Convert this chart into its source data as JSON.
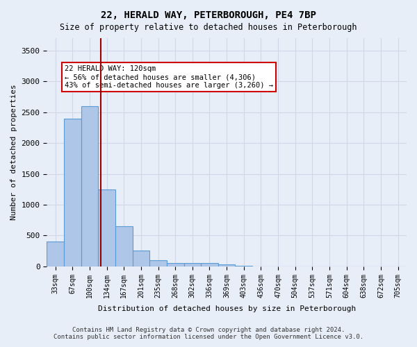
{
  "title": "22, HERALD WAY, PETERBOROUGH, PE4 7BP",
  "subtitle": "Size of property relative to detached houses in Peterborough",
  "xlabel": "Distribution of detached houses by size in Peterborough",
  "ylabel": "Number of detached properties",
  "footer_line1": "Contains HM Land Registry data © Crown copyright and database right 2024.",
  "footer_line2": "Contains public sector information licensed under the Open Government Licence v3.0.",
  "categories": [
    "33sqm",
    "67sqm",
    "100sqm",
    "134sqm",
    "167sqm",
    "201sqm",
    "235sqm",
    "268sqm",
    "302sqm",
    "336sqm",
    "369sqm",
    "403sqm",
    "436sqm",
    "470sqm",
    "504sqm",
    "537sqm",
    "571sqm",
    "604sqm",
    "638sqm",
    "672sqm",
    "705sqm"
  ],
  "values": [
    400,
    2400,
    2600,
    1250,
    650,
    260,
    100,
    60,
    60,
    50,
    30,
    5,
    0,
    0,
    0,
    0,
    0,
    0,
    0,
    0,
    0
  ],
  "bar_color": "#aec6e8",
  "bar_edge_color": "#5b9bd5",
  "grid_color": "#d0d8e8",
  "background_color": "#e8eef8",
  "annotation_text": "22 HERALD WAY: 120sqm\n← 56% of detached houses are smaller (4,306)\n43% of semi-detached houses are larger (3,260) →",
  "annotation_box_color": "#ffffff",
  "annotation_box_edge_color": "#cc0000",
  "red_line_x": 2.67,
  "ylim": [
    0,
    3700
  ],
  "yticks": [
    0,
    500,
    1000,
    1500,
    2000,
    2500,
    3000,
    3500
  ]
}
